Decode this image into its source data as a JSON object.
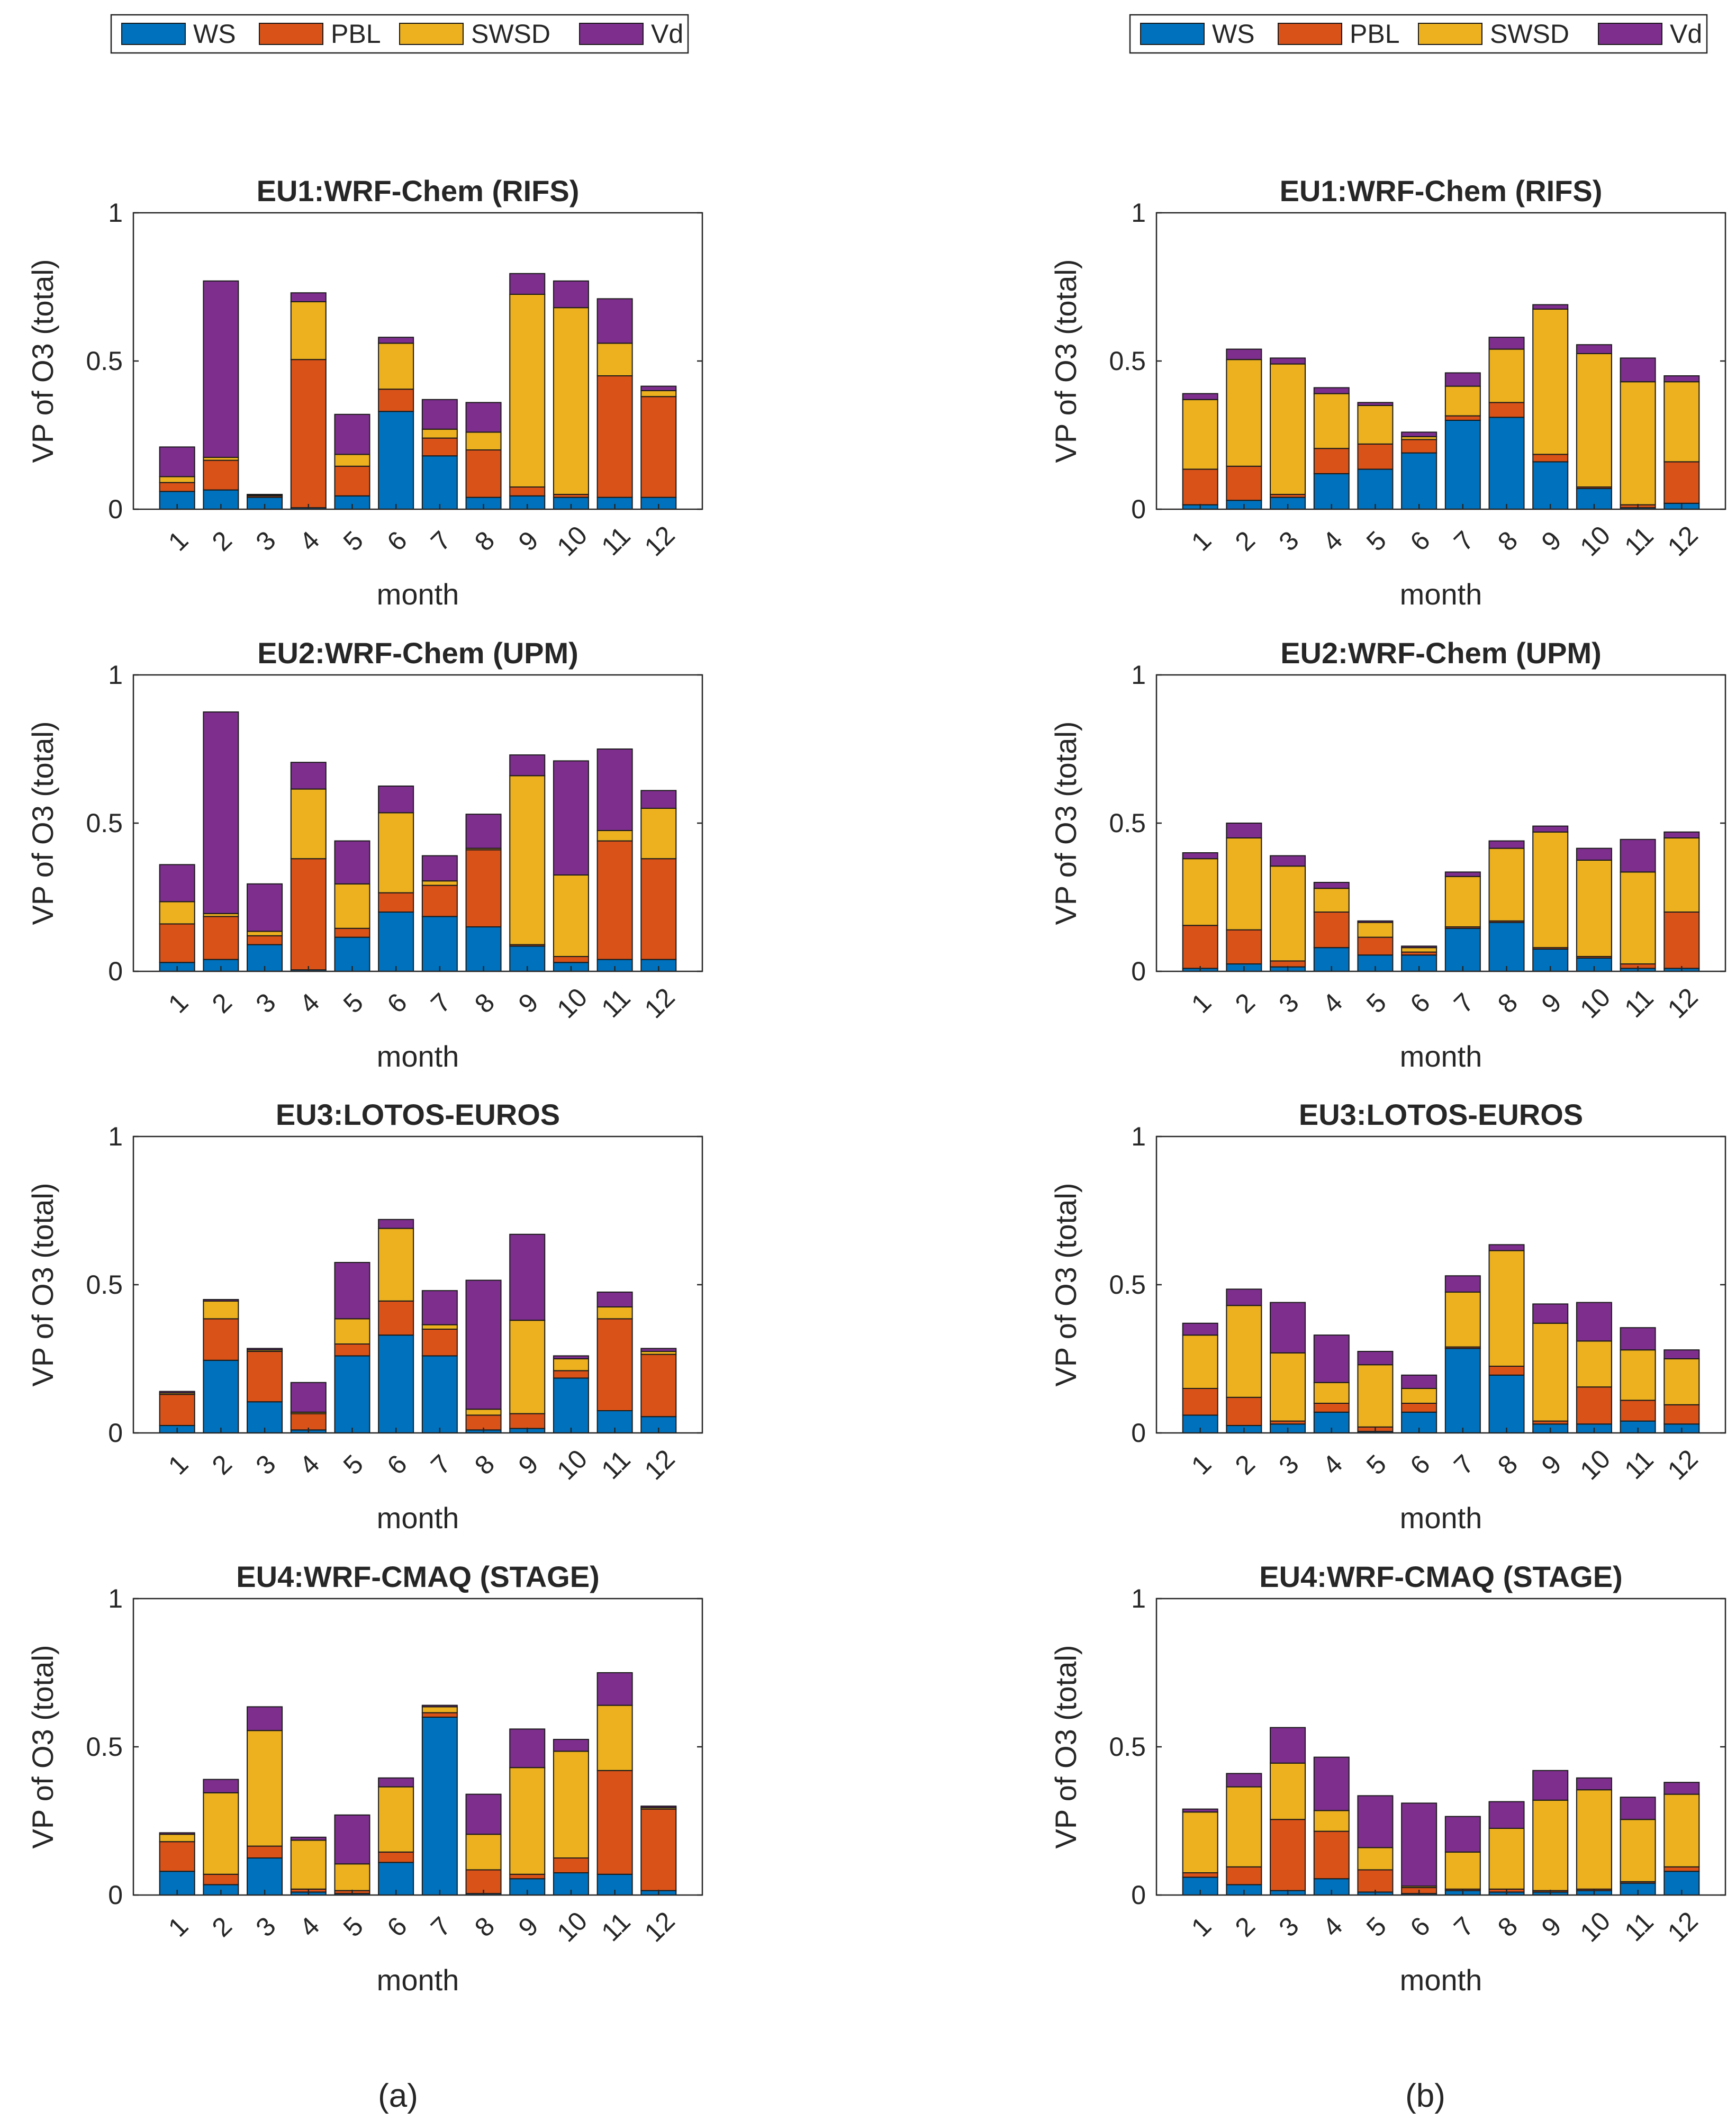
{
  "legend": {
    "entries": [
      "WS",
      "PBL",
      "SWSD",
      "Vd"
    ]
  },
  "colors": {
    "WS": "#0072BD",
    "PBL": "#D95319",
    "SWSD": "#EDB120",
    "Vd": "#7E2F8E"
  },
  "panel_labels": {
    "a": "(a)",
    "b": "(b)"
  },
  "chart_data": [
    {
      "id": "a1",
      "type": "bar",
      "stacked": true,
      "title": "EU1:WRF-Chem (RIFS)",
      "xlabel": "month",
      "ylabel": "VP of O3 (total)",
      "categories": [
        "1",
        "2",
        "3",
        "4",
        "5",
        "6",
        "7",
        "8",
        "9",
        "10",
        "11",
        "12"
      ],
      "ylim": [
        0,
        1
      ],
      "yticks": [
        "0",
        "0.5",
        "1"
      ],
      "series": [
        {
          "name": "WS",
          "values": [
            0.06,
            0.065,
            0.04,
            0.005,
            0.045,
            0.33,
            0.18,
            0.04,
            0.045,
            0.04,
            0.04,
            0.04
          ]
        },
        {
          "name": "PBL",
          "values": [
            0.03,
            0.1,
            0.005,
            0.5,
            0.1,
            0.075,
            0.06,
            0.16,
            0.03,
            0.01,
            0.41,
            0.34
          ]
        },
        {
          "name": "SWSD",
          "values": [
            0.02,
            0.01,
            0.002,
            0.195,
            0.04,
            0.155,
            0.03,
            0.06,
            0.65,
            0.63,
            0.11,
            0.02
          ]
        },
        {
          "name": "Vd",
          "values": [
            0.1,
            0.595,
            0.003,
            0.03,
            0.135,
            0.02,
            0.1,
            0.1,
            0.07,
            0.09,
            0.15,
            0.015
          ]
        }
      ]
    },
    {
      "id": "b1",
      "type": "bar",
      "stacked": true,
      "title": "EU1:WRF-Chem (RIFS)",
      "xlabel": "month",
      "ylabel": "VP of O3 (total)",
      "categories": [
        "1",
        "2",
        "3",
        "4",
        "5",
        "6",
        "7",
        "8",
        "9",
        "10",
        "11",
        "12"
      ],
      "ylim": [
        0,
        1
      ],
      "yticks": [
        "0",
        "0.5",
        "1"
      ],
      "series": [
        {
          "name": "WS",
          "values": [
            0.015,
            0.03,
            0.04,
            0.12,
            0.135,
            0.19,
            0.3,
            0.31,
            0.16,
            0.07,
            0.005,
            0.02
          ]
        },
        {
          "name": "PBL",
          "values": [
            0.12,
            0.115,
            0.01,
            0.085,
            0.085,
            0.045,
            0.015,
            0.05,
            0.025,
            0.005,
            0.01,
            0.14
          ]
        },
        {
          "name": "SWSD",
          "values": [
            0.235,
            0.36,
            0.44,
            0.185,
            0.13,
            0.01,
            0.1,
            0.18,
            0.49,
            0.45,
            0.415,
            0.27
          ]
        },
        {
          "name": "Vd",
          "values": [
            0.02,
            0.035,
            0.02,
            0.02,
            0.01,
            0.015,
            0.045,
            0.04,
            0.015,
            0.03,
            0.08,
            0.02
          ]
        }
      ]
    },
    {
      "id": "a2",
      "type": "bar",
      "stacked": true,
      "title": "EU2:WRF-Chem (UPM)",
      "xlabel": "month",
      "ylabel": "VP of O3 (total)",
      "categories": [
        "1",
        "2",
        "3",
        "4",
        "5",
        "6",
        "7",
        "8",
        "9",
        "10",
        "11",
        "12"
      ],
      "ylim": [
        0,
        1
      ],
      "yticks": [
        "0",
        "0.5",
        "1"
      ],
      "series": [
        {
          "name": "WS",
          "values": [
            0.03,
            0.04,
            0.09,
            0.005,
            0.115,
            0.2,
            0.185,
            0.15,
            0.085,
            0.03,
            0.04,
            0.04
          ]
        },
        {
          "name": "PBL",
          "values": [
            0.13,
            0.145,
            0.03,
            0.375,
            0.03,
            0.065,
            0.105,
            0.26,
            0.005,
            0.02,
            0.4,
            0.34
          ]
        },
        {
          "name": "SWSD",
          "values": [
            0.075,
            0.01,
            0.015,
            0.235,
            0.15,
            0.27,
            0.015,
            0.005,
            0.57,
            0.275,
            0.035,
            0.17
          ]
        },
        {
          "name": "Vd",
          "values": [
            0.125,
            0.68,
            0.16,
            0.09,
            0.145,
            0.09,
            0.085,
            0.115,
            0.07,
            0.385,
            0.275,
            0.06
          ]
        }
      ]
    },
    {
      "id": "b2",
      "type": "bar",
      "stacked": true,
      "title": "EU2:WRF-Chem (UPM)",
      "xlabel": "month",
      "ylabel": "VP of O3 (total)",
      "categories": [
        "1",
        "2",
        "3",
        "4",
        "5",
        "6",
        "7",
        "8",
        "9",
        "10",
        "11",
        "12"
      ],
      "ylim": [
        0,
        1
      ],
      "yticks": [
        "0",
        "0.5",
        "1"
      ],
      "series": [
        {
          "name": "WS",
          "values": [
            0.01,
            0.025,
            0.015,
            0.08,
            0.055,
            0.055,
            0.145,
            0.165,
            0.075,
            0.045,
            0.01,
            0.01
          ]
        },
        {
          "name": "PBL",
          "values": [
            0.145,
            0.115,
            0.02,
            0.12,
            0.06,
            0.01,
            0.005,
            0.005,
            0.005,
            0.005,
            0.015,
            0.19
          ]
        },
        {
          "name": "SWSD",
          "values": [
            0.225,
            0.31,
            0.32,
            0.08,
            0.05,
            0.015,
            0.17,
            0.245,
            0.39,
            0.325,
            0.31,
            0.25
          ]
        },
        {
          "name": "Vd",
          "values": [
            0.02,
            0.05,
            0.035,
            0.02,
            0.005,
            0.005,
            0.015,
            0.025,
            0.02,
            0.04,
            0.11,
            0.02
          ]
        }
      ]
    },
    {
      "id": "a3",
      "type": "bar",
      "stacked": true,
      "title": "EU3:LOTOS-EUROS",
      "xlabel": "month",
      "ylabel": "VP of O3 (total)",
      "categories": [
        "1",
        "2",
        "3",
        "4",
        "5",
        "6",
        "7",
        "8",
        "9",
        "10",
        "11",
        "12"
      ],
      "ylim": [
        0,
        1
      ],
      "yticks": [
        "0",
        "0.5",
        "1"
      ],
      "series": [
        {
          "name": "WS",
          "values": [
            0.025,
            0.245,
            0.105,
            0.01,
            0.26,
            0.33,
            0.26,
            0.01,
            0.015,
            0.185,
            0.075,
            0.055
          ]
        },
        {
          "name": "PBL",
          "values": [
            0.105,
            0.14,
            0.17,
            0.055,
            0.04,
            0.115,
            0.09,
            0.05,
            0.05,
            0.025,
            0.31,
            0.21
          ]
        },
        {
          "name": "SWSD",
          "values": [
            0.005,
            0.06,
            0.005,
            0.005,
            0.085,
            0.245,
            0.015,
            0.02,
            0.315,
            0.04,
            0.04,
            0.01
          ]
        },
        {
          "name": "Vd",
          "values": [
            0.005,
            0.005,
            0.005,
            0.1,
            0.19,
            0.03,
            0.115,
            0.435,
            0.29,
            0.01,
            0.05,
            0.01
          ]
        }
      ]
    },
    {
      "id": "b3",
      "type": "bar",
      "stacked": true,
      "title": "EU3:LOTOS-EUROS",
      "xlabel": "month",
      "ylabel": "VP of O3 (total)",
      "categories": [
        "1",
        "2",
        "3",
        "4",
        "5",
        "6",
        "7",
        "8",
        "9",
        "10",
        "11",
        "12"
      ],
      "ylim": [
        0,
        1
      ],
      "yticks": [
        "0",
        "0.5",
        "1"
      ],
      "series": [
        {
          "name": "WS",
          "values": [
            0.06,
            0.025,
            0.03,
            0.07,
            0.005,
            0.07,
            0.285,
            0.195,
            0.03,
            0.03,
            0.04,
            0.03
          ]
        },
        {
          "name": "PBL",
          "values": [
            0.09,
            0.095,
            0.01,
            0.03,
            0.015,
            0.03,
            0.005,
            0.03,
            0.01,
            0.125,
            0.07,
            0.065
          ]
        },
        {
          "name": "SWSD",
          "values": [
            0.18,
            0.31,
            0.23,
            0.07,
            0.21,
            0.05,
            0.185,
            0.39,
            0.33,
            0.155,
            0.17,
            0.155
          ]
        },
        {
          "name": "Vd",
          "values": [
            0.04,
            0.055,
            0.17,
            0.16,
            0.045,
            0.045,
            0.055,
            0.02,
            0.065,
            0.13,
            0.075,
            0.03
          ]
        }
      ]
    },
    {
      "id": "a4",
      "type": "bar",
      "stacked": true,
      "title": "EU4:WRF-CMAQ (STAGE)",
      "xlabel": "month",
      "ylabel": "VP of O3 (total)",
      "categories": [
        "1",
        "2",
        "3",
        "4",
        "5",
        "6",
        "7",
        "8",
        "9",
        "10",
        "11",
        "12"
      ],
      "ylim": [
        0,
        1
      ],
      "yticks": [
        "0",
        "0.5",
        "1"
      ],
      "series": [
        {
          "name": "WS",
          "values": [
            0.08,
            0.035,
            0.125,
            0.01,
            0.005,
            0.11,
            0.6,
            0.005,
            0.055,
            0.075,
            0.07,
            0.015
          ]
        },
        {
          "name": "PBL",
          "values": [
            0.1,
            0.035,
            0.04,
            0.01,
            0.01,
            0.035,
            0.015,
            0.08,
            0.015,
            0.05,
            0.35,
            0.275
          ]
        },
        {
          "name": "SWSD",
          "values": [
            0.025,
            0.275,
            0.39,
            0.165,
            0.09,
            0.22,
            0.02,
            0.12,
            0.36,
            0.36,
            0.22,
            0.005
          ]
        },
        {
          "name": "Vd",
          "values": [
            0.005,
            0.045,
            0.08,
            0.01,
            0.165,
            0.03,
            0.005,
            0.135,
            0.13,
            0.04,
            0.11,
            0.005
          ]
        }
      ]
    },
    {
      "id": "b4",
      "type": "bar",
      "stacked": true,
      "title": "EU4:WRF-CMAQ (STAGE)",
      "xlabel": "month",
      "ylabel": "VP of O3 (total)",
      "categories": [
        "1",
        "2",
        "3",
        "4",
        "5",
        "6",
        "7",
        "8",
        "9",
        "10",
        "11",
        "12"
      ],
      "ylim": [
        0,
        1
      ],
      "yticks": [
        "0",
        "0.5",
        "1"
      ],
      "series": [
        {
          "name": "WS",
          "values": [
            0.06,
            0.035,
            0.015,
            0.055,
            0.01,
            0.005,
            0.015,
            0.01,
            0.01,
            0.015,
            0.04,
            0.08
          ]
        },
        {
          "name": "PBL",
          "values": [
            0.015,
            0.06,
            0.24,
            0.16,
            0.075,
            0.02,
            0.005,
            0.01,
            0.005,
            0.005,
            0.005,
            0.015
          ]
        },
        {
          "name": "SWSD",
          "values": [
            0.205,
            0.27,
            0.19,
            0.07,
            0.075,
            0.005,
            0.125,
            0.205,
            0.305,
            0.335,
            0.21,
            0.245
          ]
        },
        {
          "name": "Vd",
          "values": [
            0.01,
            0.045,
            0.12,
            0.18,
            0.175,
            0.28,
            0.12,
            0.09,
            0.1,
            0.04,
            0.075,
            0.04
          ]
        }
      ]
    }
  ]
}
